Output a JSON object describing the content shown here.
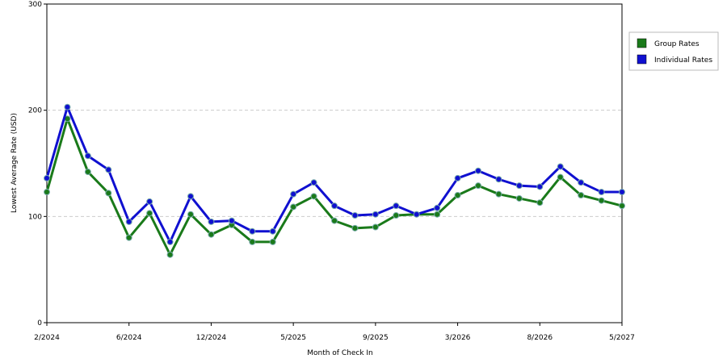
{
  "chart_data": {
    "type": "line",
    "x_label": "Month of Check In",
    "y_label": "Lowest Average Rate (USD)",
    "categories": [
      "2/2024",
      null,
      null,
      null,
      "6/2024",
      null,
      null,
      null,
      "12/2024",
      null,
      null,
      null,
      "5/2025",
      null,
      null,
      null,
      "9/2025",
      null,
      null,
      null,
      "3/2026",
      null,
      null,
      null,
      "8/2026",
      null,
      null,
      null,
      "5/2027"
    ],
    "series": [
      {
        "name": "Group Rates",
        "color": "#1a7a1a",
        "values": [
          123,
          192,
          142,
          122,
          80,
          103,
          64,
          102,
          83,
          92,
          76,
          76,
          109,
          119,
          96,
          89,
          90,
          101,
          102,
          102,
          120,
          129,
          121,
          117,
          113,
          137,
          120,
          115,
          110
        ]
      },
      {
        "name": "Individual Rates",
        "color": "#1010d0",
        "values": [
          136,
          203,
          157,
          144,
          95,
          114,
          76,
          119,
          95,
          96,
          86,
          86,
          121,
          132,
          110,
          101,
          102,
          110,
          102,
          108,
          136,
          143,
          135,
          129,
          128,
          147,
          132,
          123,
          123
        ]
      }
    ],
    "ylim": [
      0,
      300
    ],
    "yticks": [
      0,
      100,
      200,
      300
    ],
    "grid": true,
    "legend": "right"
  }
}
